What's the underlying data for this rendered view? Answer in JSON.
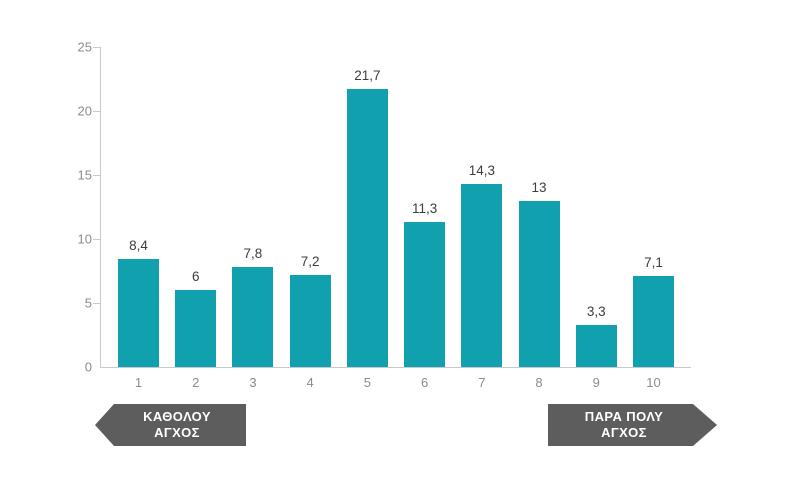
{
  "chart_data": {
    "type": "bar",
    "title": "",
    "xlabel": "",
    "ylabel": "",
    "categories": [
      "1",
      "2",
      "3",
      "4",
      "5",
      "6",
      "7",
      "8",
      "9",
      "10"
    ],
    "values": [
      8.4,
      6,
      7.8,
      7.2,
      21.7,
      11.3,
      14.3,
      13,
      3.3,
      7.1
    ],
    "value_labels": [
      "8,4",
      "6",
      "7,8",
      "7,2",
      "21,7",
      "11,3",
      "14,3",
      "13",
      "3,3",
      "7,1"
    ],
    "ylim": [
      0,
      25
    ],
    "yticks": [
      0,
      5,
      10,
      15,
      20,
      25
    ],
    "grid": false,
    "legend": "none",
    "bar_color": "#11a0ad"
  },
  "annotations": {
    "left_arrow": {
      "line1": "ΚΑΘΟΛΟΥ",
      "line2": "ΑΓΧΟΣ",
      "direction": "left"
    },
    "right_arrow": {
      "line1": "ΠΑΡΑ ΠΟΛΥ",
      "line2": "ΑΓΧΟΣ",
      "direction": "right"
    }
  },
  "colors": {
    "bar": "#11a0ad",
    "axis_line": "#c9c9c9",
    "tick_label": "#8b8b8b",
    "value_label": "#3d3d3d",
    "arrow_fill": "#5d5d5d",
    "arrow_text": "#ffffff",
    "background": "#ffffff"
  }
}
